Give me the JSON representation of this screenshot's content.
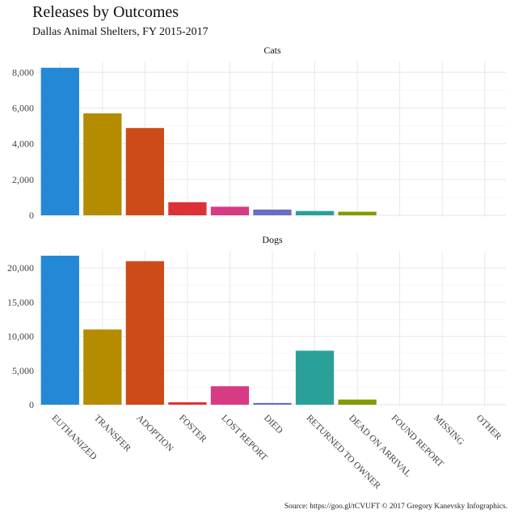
{
  "chart_data": {
    "type": "bar",
    "title": "Releases by Outcomes",
    "subtitle": "Dallas Animal Shelters, FY 2015-2017",
    "caption": "Source: https://goo.gl/tCVUFT © 2017 Gregory Kanevsky Infographics.",
    "xlabel": "",
    "ylabel": "",
    "categories": [
      "EUTHANIZED",
      "TRANSFER",
      "ADOPTION",
      "FOSTER",
      "LOST REPORT",
      "DIED",
      "RETURNED TO OWNER",
      "DEAD ON ARRIVAL",
      "FOUND REPORT",
      "MISSING",
      "OTHER"
    ],
    "colors": [
      "#2389d6",
      "#b58b00",
      "#cc4b18",
      "#dc3235",
      "#d63b84",
      "#6a6bc6",
      "#2aa198",
      "#859900",
      "#2389d6",
      "#b58b00",
      "#cc4b18"
    ],
    "facets": [
      {
        "label": "Cats",
        "ylim": [
          0,
          8600
        ],
        "yticks": [
          0,
          2000,
          4000,
          6000,
          8000
        ],
        "ytick_labels": [
          "0",
          "2,000",
          "4,000",
          "6,000",
          "8,000"
        ],
        "values": [
          8250,
          5700,
          4880,
          730,
          480,
          320,
          240,
          200,
          0,
          0,
          0
        ]
      },
      {
        "label": "Dogs",
        "ylim": [
          0,
          22500
        ],
        "yticks": [
          0,
          5000,
          10000,
          15000,
          20000
        ],
        "ytick_labels": [
          "0",
          "5,000",
          "10,000",
          "15,000",
          "20,000"
        ],
        "values": [
          21800,
          11000,
          21000,
          350,
          2700,
          250,
          7900,
          750,
          5,
          5,
          5
        ]
      }
    ]
  }
}
